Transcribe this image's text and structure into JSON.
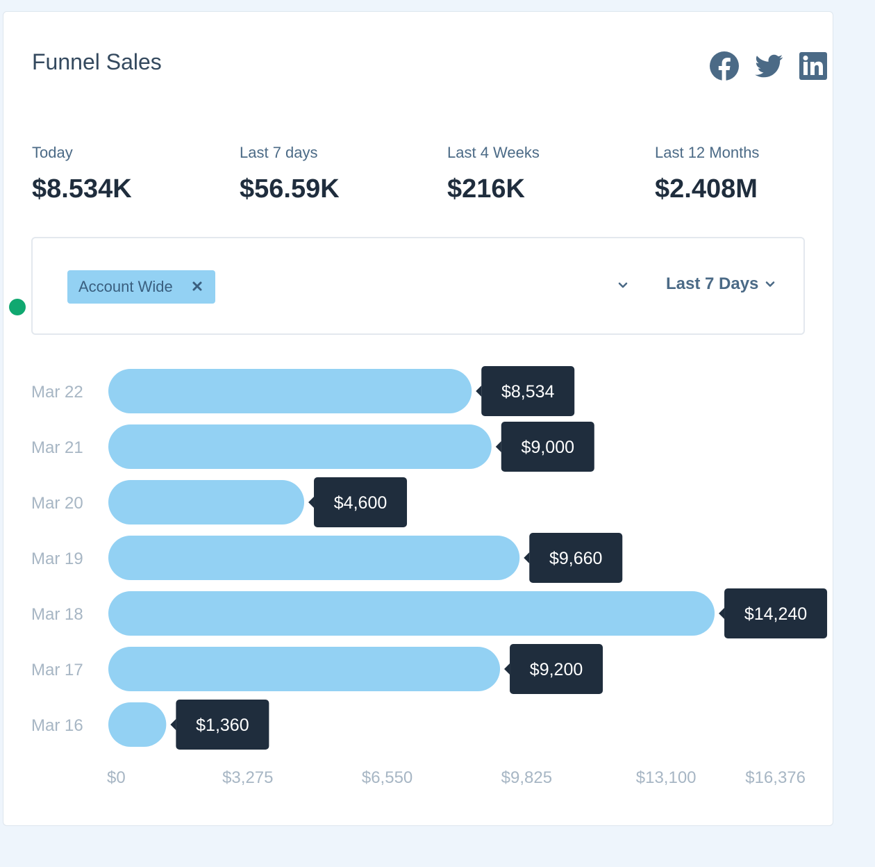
{
  "title": "Funnel Sales",
  "social": [
    {
      "icon": "facebook-icon"
    },
    {
      "icon": "twitter-icon"
    },
    {
      "icon": "linkedin-icon"
    }
  ],
  "stats": [
    {
      "label": "Today",
      "value": "$8.534K"
    },
    {
      "label": "Last 7 days",
      "value": "$56.59K"
    },
    {
      "label": "Last 4 Weeks",
      "value": "$216K"
    },
    {
      "label": "Last 12 Months",
      "value": "$2.408M"
    }
  ],
  "filter": {
    "chip_label": "Account Wide",
    "range_label": "Last 7 Days"
  },
  "colors": {
    "bar": "#93d1f3",
    "tooltip": "#1f2d3d",
    "status": "#10a870"
  },
  "chart_data": {
    "type": "bar",
    "orientation": "horizontal",
    "categories": [
      "Mar 22",
      "Mar 21",
      "Mar 20",
      "Mar 19",
      "Mar 18",
      "Mar 17",
      "Mar 16"
    ],
    "values": [
      8534,
      9000,
      4600,
      9660,
      14240,
      9200,
      1360
    ],
    "value_labels": [
      "$8,534",
      "$9,000",
      "$4,600",
      "$9,660",
      "$14,240",
      "$9,200",
      "$1,360"
    ],
    "xticks": [
      0,
      3275,
      6550,
      9825,
      13100,
      16376
    ],
    "xtick_labels": [
      "$0",
      "$3,275",
      "$6,550",
      "$9,825",
      "$13,100",
      "$16,376"
    ],
    "xlim": [
      0,
      16376
    ],
    "grid": false
  }
}
